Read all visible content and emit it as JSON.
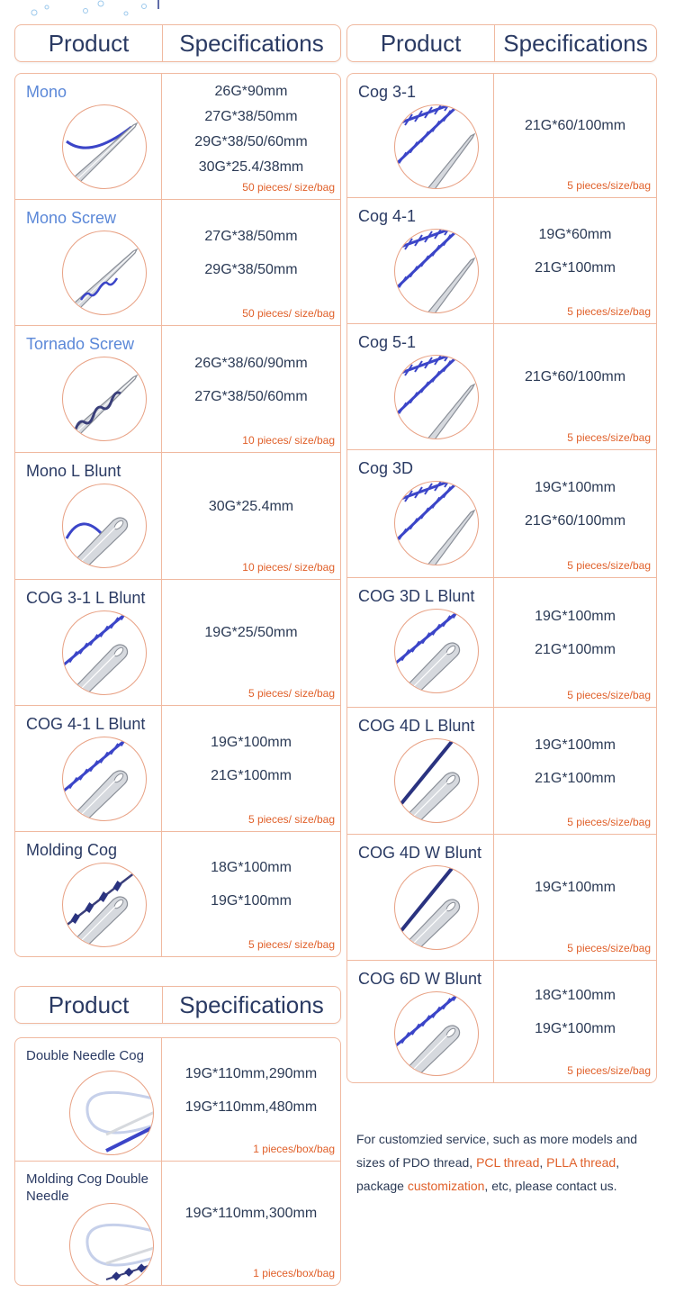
{
  "headers": {
    "product": "Product",
    "specifications": "Specifications"
  },
  "colors": {
    "border": "#f0b9a0",
    "accent": "#e0602a",
    "thread": "#3b45c8",
    "text": "#2a3a63"
  },
  "left": [
    {
      "name": "Mono",
      "specs": [
        "26G*90mm",
        "27G*38/50mm",
        "29G*38/50/60mm",
        "30G*25.4/38mm"
      ],
      "pack": "50 pieces/ size/bag",
      "icon": "sharp-needle-mono"
    },
    {
      "name": "Mono Screw",
      "specs": [
        "27G*38/50mm",
        "29G*38/50mm"
      ],
      "pack": "50 pieces/ size/bag",
      "icon": "sharp-needle-screw"
    },
    {
      "name": "Tornado Screw",
      "specs": [
        "26G*38/60/90mm",
        "27G*38/50/60mm"
      ],
      "pack": "10 pieces/ size/bag",
      "icon": "sharp-needle-tornado"
    },
    {
      "name": "Mono L Blunt",
      "specs": [
        "30G*25.4mm"
      ],
      "pack": "10 pieces/ size/bag",
      "icon": "blunt-needle-mono"
    },
    {
      "name": "COG 3-1 L Blunt",
      "specs": [
        "19G*25/50mm"
      ],
      "pack": "5 pieces/ size/bag",
      "icon": "blunt-cannula-cog"
    },
    {
      "name": "COG 4-1 L Blunt",
      "specs": [
        "19G*100mm",
        "21G*100mm"
      ],
      "pack": "5 pieces/ size/bag",
      "icon": "blunt-cannula-cog"
    },
    {
      "name": "Molding Cog",
      "specs": [
        "18G*100mm",
        "19G*100mm"
      ],
      "pack": "5 pieces/ size/bag",
      "icon": "blunt-cannula-molding"
    }
  ],
  "right": [
    {
      "name": "Cog 3-1",
      "specs": [
        "21G*60/100mm"
      ],
      "pack": "5 pieces/size/bag",
      "icon": "sharp-needle-cog"
    },
    {
      "name": "Cog 4-1",
      "specs": [
        "19G*60mm",
        "21G*100mm"
      ],
      "pack": "5 pieces/size/bag",
      "icon": "sharp-needle-cog"
    },
    {
      "name": "Cog 5-1",
      "specs": [
        "21G*60/100mm"
      ],
      "pack": "5 pieces/size/bag",
      "icon": "sharp-needle-cog"
    },
    {
      "name": "Cog 3D",
      "specs": [
        "19G*100mm",
        "21G*60/100mm"
      ],
      "pack": "5 pieces/size/bag",
      "icon": "sharp-needle-cog"
    },
    {
      "name": "COG 3D L Blunt",
      "specs": [
        "19G*100mm",
        "21G*100mm"
      ],
      "pack": "5 pieces/size/bag",
      "icon": "blunt-cannula-cog"
    },
    {
      "name": "COG 4D L Blunt",
      "specs": [
        "19G*100mm",
        "21G*100mm"
      ],
      "pack": "5 pieces/size/bag",
      "icon": "blunt-cannula-dense-cog"
    },
    {
      "name": "COG 4D W Blunt",
      "specs": [
        "19G*100mm"
      ],
      "pack": "5 pieces/size/bag",
      "icon": "blunt-cannula-dense-cog"
    },
    {
      "name": "COG 6D W Blunt",
      "specs": [
        "18G*100mm",
        "19G*100mm"
      ],
      "pack": "5 pieces/size/bag",
      "icon": "blunt-cannula-cog"
    }
  ],
  "bottom": [
    {
      "name": "Double Needle Cog",
      "specs": [
        "19G*110mm,290mm",
        "19G*110mm,480mm"
      ],
      "pack": "1 pieces/box/bag",
      "icon": "double-needle-loop"
    },
    {
      "name": "Molding Cog Double Needle",
      "specs": [
        "19G*110mm,300mm"
      ],
      "pack": "1 pieces/box/bag",
      "icon": "double-needle-molding"
    }
  ],
  "note": {
    "p1": "For customzied service, such as more models and sizes of PDO thread, ",
    "h1": "PCL thread",
    "p2": ", ",
    "h2": "PLLA thread",
    "p3": ", package ",
    "h3": "customization",
    "p4": ", etc, please contact us."
  }
}
